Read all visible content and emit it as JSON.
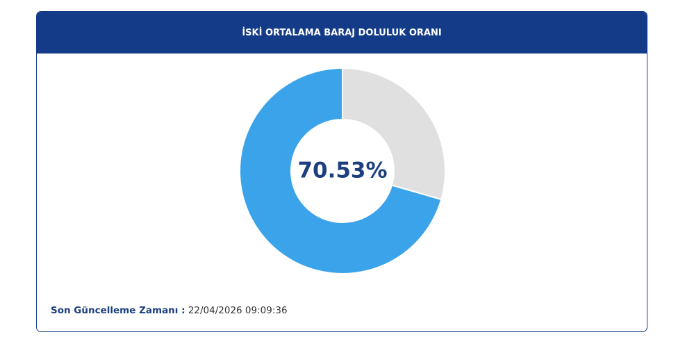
{
  "chart_data": {
    "type": "donut",
    "title": "İSKİ ORTALAMA BARAJ DOLULUK ORANI",
    "values": [
      70.53,
      29.47
    ],
    "value_labels": [
      "70.53%",
      null
    ],
    "colors": [
      "#3ba3e9",
      "#e0e0e0"
    ],
    "direction": "counterclockwise"
  },
  "footer": {
    "label": "Son Güncelleme Zamanı :",
    "value": "22/04/2026 09:09:36"
  }
}
